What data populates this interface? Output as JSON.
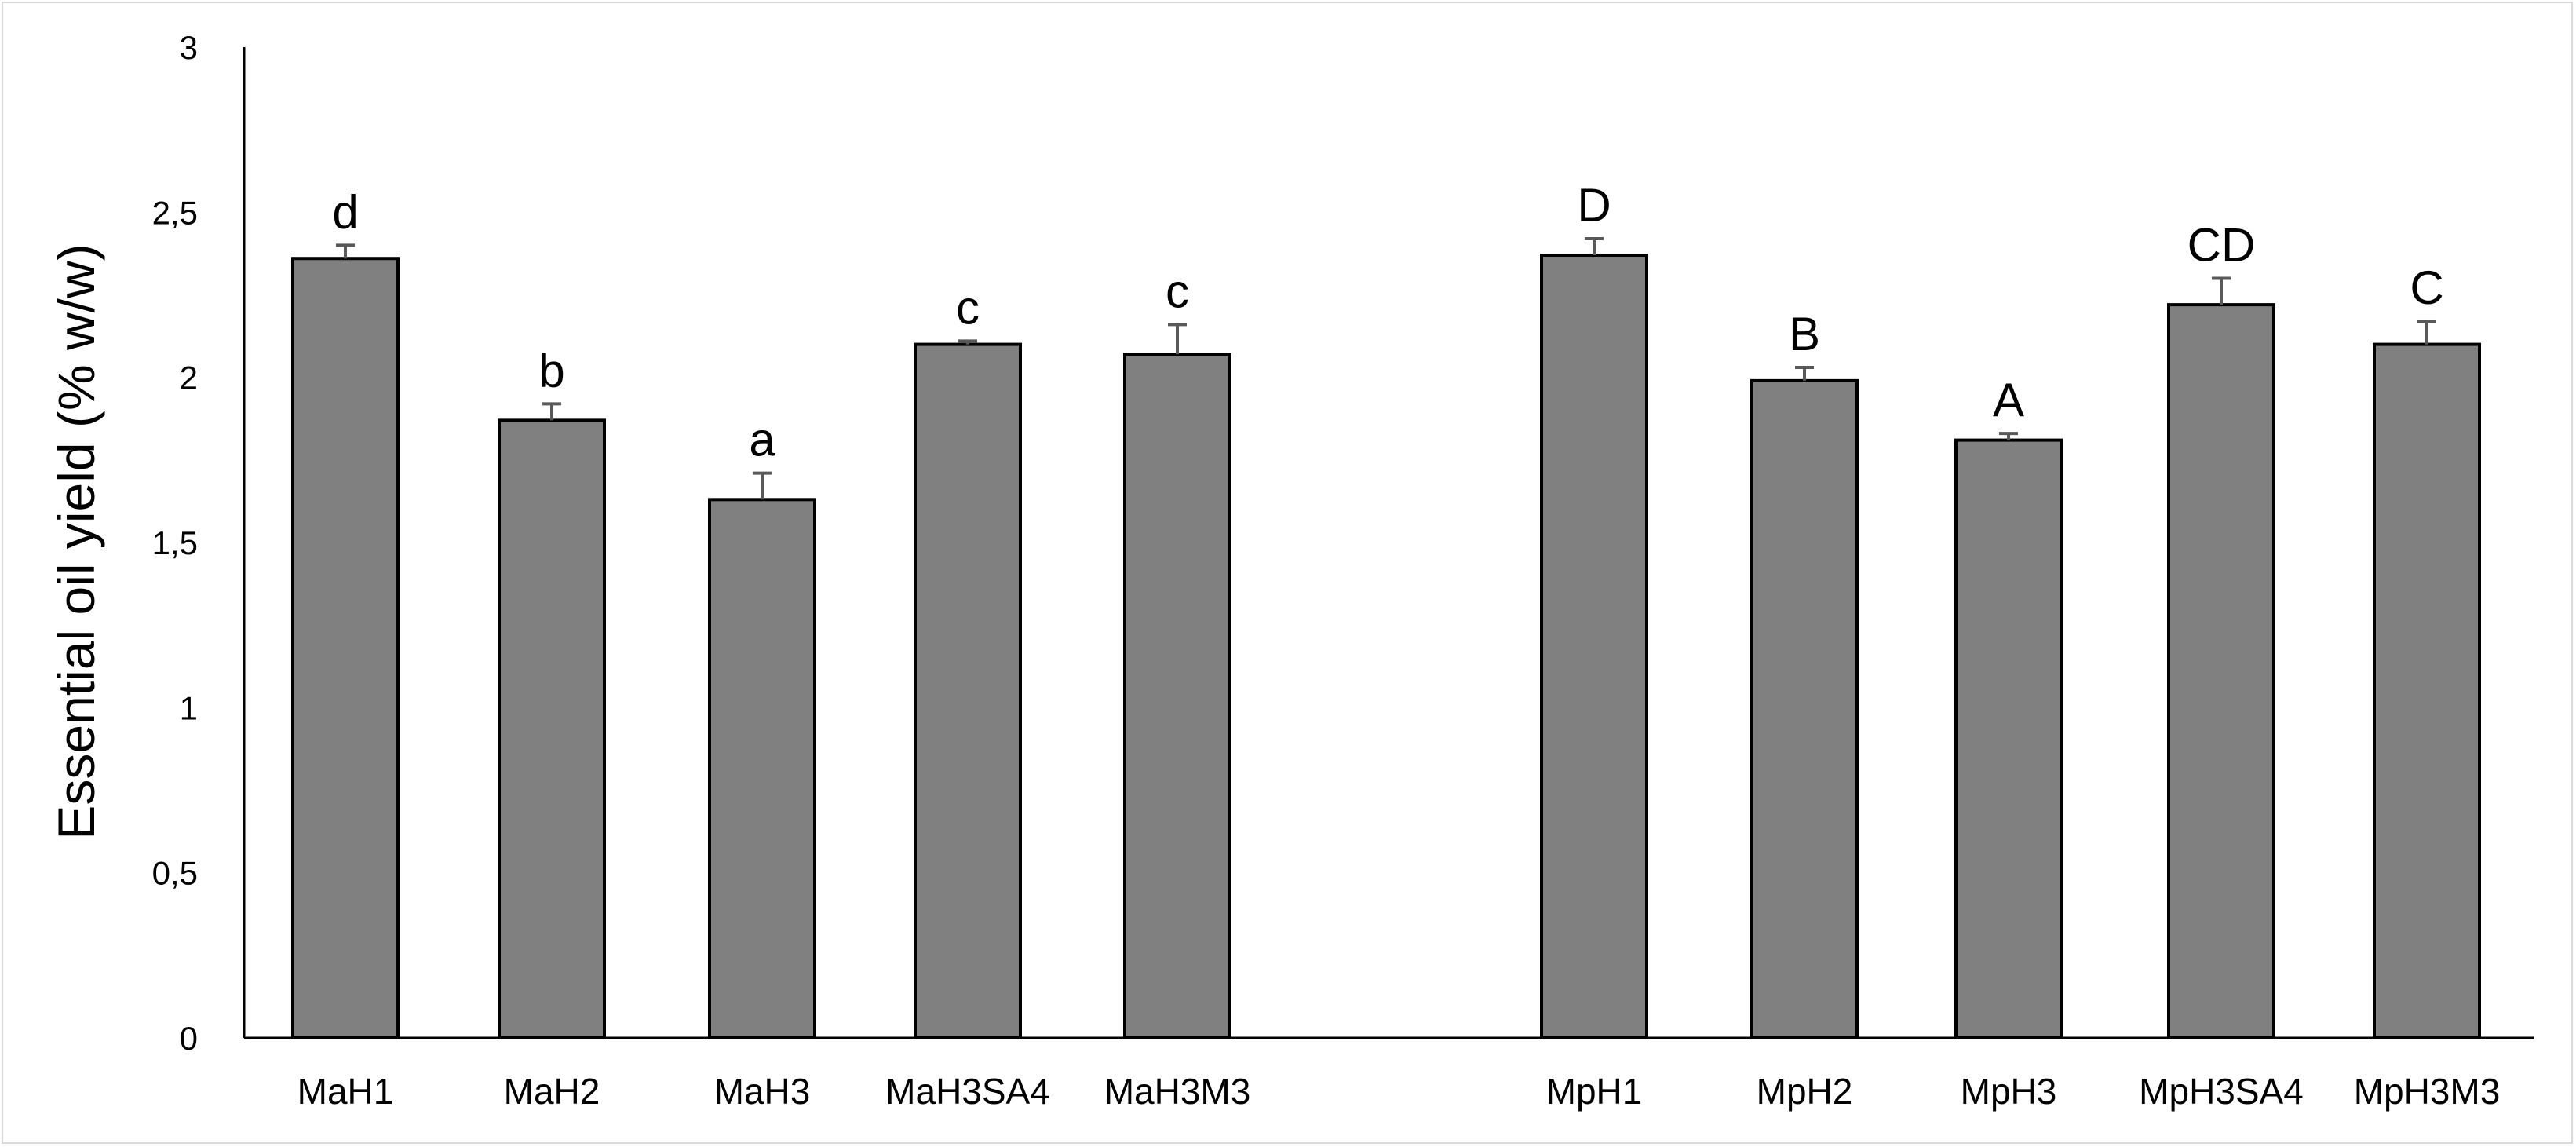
{
  "chart_data": {
    "type": "bar",
    "title": "",
    "xlabel": "",
    "ylabel": "Essential oil yield (% w/w)",
    "ylim": [
      0,
      3
    ],
    "yticks": [
      0,
      0.5,
      1,
      1.5,
      2,
      2.5,
      3
    ],
    "ytick_labels": [
      "0",
      "0,5",
      "1",
      "1,5",
      "2",
      "2,5",
      "3"
    ],
    "grid": false,
    "legend": "none",
    "bar_color": "#808080",
    "bar_edge_color": "#000000",
    "error_color": "#595959",
    "groups": [
      {
        "categories": [
          "MaH1",
          "MaH2",
          "MaH3",
          "MaH3SA4",
          "MaH3M3"
        ],
        "values": [
          2.36,
          1.87,
          1.63,
          2.1,
          2.07
        ],
        "errors": [
          0.04,
          0.05,
          0.08,
          0.01,
          0.09
        ],
        "labels": [
          "d",
          "b",
          "a",
          "c",
          "c"
        ]
      },
      {
        "categories": [
          "MpH1",
          "MpH2",
          "MpH3",
          "MpH3SA4",
          "MpH3M3"
        ],
        "values": [
          2.37,
          1.99,
          1.81,
          2.22,
          2.1
        ],
        "errors": [
          0.05,
          0.04,
          0.02,
          0.08,
          0.07
        ],
        "labels": [
          "D",
          "B",
          "A",
          "CD",
          "C"
        ]
      }
    ]
  }
}
